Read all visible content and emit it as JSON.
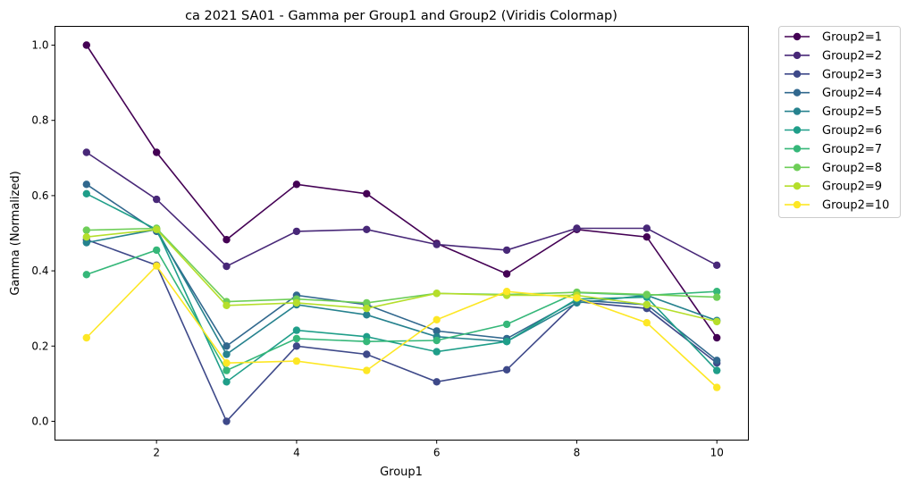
{
  "chart_data": {
    "type": "line",
    "title": "ca 2021 SA01 - Gamma per Group1 and Group2 (Viridis Colormap)",
    "xlabel": "Group1",
    "ylabel": "Gamma (Normalized)",
    "xlim": [
      0.55,
      10.45
    ],
    "ylim": [
      -0.05,
      1.05
    ],
    "xticks": [
      2,
      4,
      6,
      8,
      10
    ],
    "yticks": [
      0.0,
      0.2,
      0.4,
      0.6,
      0.8,
      1.0
    ],
    "ytick_labels": [
      "0.0",
      "0.2",
      "0.4",
      "0.6",
      "0.8",
      "1.0"
    ],
    "grid": false,
    "legend_placement": "outside-upper-right",
    "x": [
      1,
      2,
      3,
      4,
      5,
      6,
      7,
      8,
      9,
      10
    ],
    "series": [
      {
        "name": "Group2=1",
        "color": "#440154",
        "values": [
          1.0,
          0.715,
          0.483,
          0.63,
          0.605,
          0.473,
          0.392,
          0.51,
          0.49,
          0.222
        ]
      },
      {
        "name": "Group2=2",
        "color": "#482878",
        "values": [
          0.715,
          0.59,
          0.412,
          0.505,
          0.51,
          0.47,
          0.455,
          0.513,
          0.513,
          0.415
        ]
      },
      {
        "name": "Group2=3",
        "color": "#3e4989",
        "values": [
          0.483,
          0.415,
          0.0,
          0.2,
          0.178,
          0.105,
          0.137,
          0.318,
          0.3,
          0.155
        ]
      },
      {
        "name": "Group2=4",
        "color": "#31688e",
        "values": [
          0.63,
          0.505,
          0.2,
          0.335,
          0.31,
          0.24,
          0.22,
          0.322,
          0.31,
          0.162
        ]
      },
      {
        "name": "Group2=5",
        "color": "#26828e",
        "values": [
          0.475,
          0.51,
          0.178,
          0.31,
          0.283,
          0.225,
          0.212,
          0.315,
          0.335,
          0.268
        ]
      },
      {
        "name": "Group2=6",
        "color": "#1f9e89",
        "values": [
          0.605,
          0.51,
          0.105,
          0.242,
          0.225,
          0.185,
          0.212,
          0.325,
          0.33,
          0.135
        ]
      },
      {
        "name": "Group2=7",
        "color": "#35b779",
        "values": [
          0.39,
          0.455,
          0.135,
          0.22,
          0.212,
          0.215,
          0.258,
          0.342,
          0.335,
          0.345
        ]
      },
      {
        "name": "Group2=8",
        "color": "#6ece58",
        "values": [
          0.508,
          0.513,
          0.318,
          0.325,
          0.315,
          0.34,
          0.337,
          0.343,
          0.337,
          0.33
        ]
      },
      {
        "name": "Group2=9",
        "color": "#b5de2b",
        "values": [
          0.49,
          0.51,
          0.308,
          0.315,
          0.3,
          0.34,
          0.335,
          0.335,
          0.31,
          0.265
        ]
      },
      {
        "name": "Group2=10",
        "color": "#fde725",
        "values": [
          0.222,
          0.413,
          0.155,
          0.16,
          0.135,
          0.27,
          0.345,
          0.328,
          0.262,
          0.09
        ]
      }
    ]
  }
}
